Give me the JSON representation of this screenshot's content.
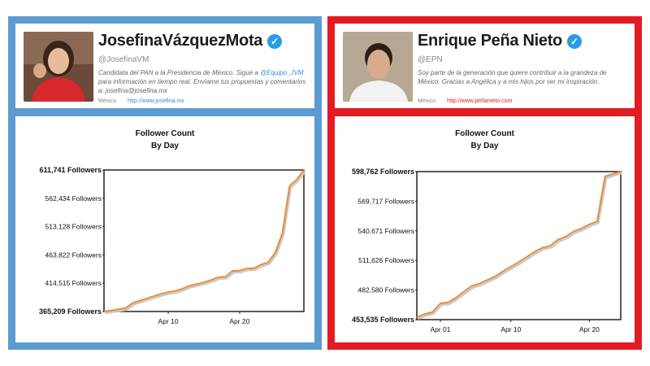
{
  "colors": {
    "left_frame": "#5b9bd1",
    "right_frame": "#e31b23",
    "verified": "#2a9be8",
    "line": "#e98a3b",
    "left_link": "#2a8fd6",
    "right_link": "#e31b23"
  },
  "left": {
    "profile": {
      "name": "JosefinaVázquezMota",
      "handle": "@JosefinaVM",
      "bio_before": "Candidata del PAN a la Presidencia de México. Sigue a",
      "bio_mention": "@Equipo_JVM",
      "bio_after": "para información en tiempo real. Envíame tus propuestas y comentarios a: josefina@josefina.mx",
      "location": "México",
      "website": "http://www.josefina.mx",
      "avatar_icon": "profile-photo"
    },
    "chart_title_1": "Follower Count",
    "chart_title_2": "By Day"
  },
  "right": {
    "profile": {
      "name": "Enrique Peña Nieto",
      "handle": "@EPN",
      "bio": "Soy parte de la generación que quiere contribuir a la grandeza de México. Gracias a Angélica y a mis hijos por ser mi inspiración.",
      "location": "México",
      "website": "http://www.peñanieto.com",
      "avatar_icon": "profile-photo"
    },
    "chart_title_1": "Follower Count",
    "chart_title_2": "By Day"
  },
  "chart_data": [
    {
      "type": "line",
      "title": "Follower Count By Day",
      "xlabel": "",
      "ylabel": "",
      "y_ticks": [
        "611,741 Followers",
        "562,434 Followers",
        "513,128 Followers",
        "463,822 Followers",
        "414,515 Followers",
        "365,209 Followers"
      ],
      "x_ticks": [
        "Apr 10",
        "Apr 20"
      ],
      "ylim": [
        365209,
        611741
      ],
      "xlim": [
        1,
        29
      ],
      "grid": false,
      "x": [
        1,
        2,
        3,
        4,
        5,
        6,
        7,
        8,
        9,
        10,
        11,
        12,
        13,
        14,
        15,
        16,
        17,
        18,
        19,
        20,
        21,
        22,
        23,
        24,
        25,
        26,
        27,
        28,
        29
      ],
      "values": [
        365209,
        367000,
        369000,
        371000,
        380000,
        384000,
        388000,
        392000,
        396000,
        399000,
        401000,
        405000,
        410000,
        413000,
        416000,
        420000,
        425000,
        425500,
        436000,
        436500,
        440000,
        440500,
        447000,
        451000,
        468000,
        502000,
        584000,
        595000,
        611741
      ]
    },
    {
      "type": "line",
      "title": "Follower Count By Day",
      "xlabel": "",
      "ylabel": "",
      "y_ticks": [
        "598,762 Followers",
        "569,717 Followers",
        "540,671 Followers",
        "511,626 Followers",
        "482,580 Followers",
        "453,535 Followers"
      ],
      "x_ticks": [
        "Apr 01",
        "Apr 10",
        "Apr 20"
      ],
      "ylim": [
        453535,
        598762
      ],
      "xlim": [
        -2,
        24
      ],
      "grid": false,
      "x": [
        -2,
        -1,
        0,
        1,
        2,
        3,
        4,
        5,
        6,
        7,
        8,
        9,
        10,
        11,
        12,
        13,
        14,
        15,
        16,
        17,
        18,
        19,
        20,
        21,
        22,
        23,
        24
      ],
      "values": [
        456000,
        459000,
        461000,
        469500,
        470500,
        475000,
        481000,
        486500,
        489000,
        492500,
        496000,
        501000,
        505500,
        510000,
        515000,
        520000,
        524000,
        526000,
        532000,
        535000,
        540000,
        543000,
        547000,
        550000,
        594000,
        596500,
        598762
      ]
    }
  ]
}
